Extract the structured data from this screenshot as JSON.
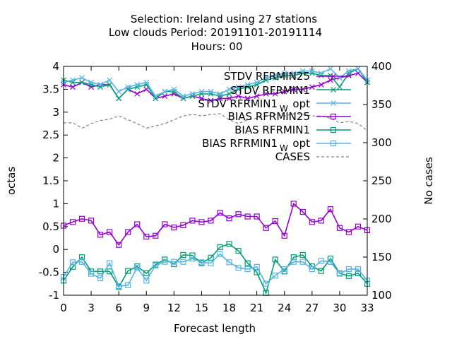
{
  "chart_data": {
    "type": "line",
    "title_lines": [
      "Selection: Ireland using    27 stations",
      "Low clouds   Period: 20191101-20191114",
      "Hours:  00"
    ],
    "xlabel": "Forecast length",
    "ylabel": "octas",
    "y2label": "No cases",
    "xlim": [
      0,
      33
    ],
    "ylim": [
      -1,
      4
    ],
    "y2lim": [
      100,
      400
    ],
    "xticks": [
      0,
      3,
      6,
      9,
      12,
      15,
      18,
      21,
      24,
      27,
      30,
      33
    ],
    "yticks": [
      -1,
      -0.5,
      0,
      0.5,
      1,
      1.5,
      2,
      2.5,
      3,
      3.5,
      4
    ],
    "y2ticks": [
      100,
      150,
      200,
      250,
      300,
      350,
      400
    ],
    "x": [
      0,
      1,
      2,
      3,
      4,
      5,
      6,
      7,
      8,
      9,
      10,
      11,
      12,
      13,
      14,
      15,
      16,
      17,
      18,
      19,
      20,
      21,
      22,
      23,
      24,
      25,
      26,
      27,
      28,
      29,
      30,
      31,
      32,
      33
    ],
    "legend_position": "top-right",
    "series": [
      {
        "name": "STDV RFRMIN25",
        "color": "#9400d3",
        "marker": "cross",
        "axis": "y1",
        "values": [
          3.6,
          3.55,
          3.65,
          3.55,
          3.6,
          3.6,
          3.3,
          3.5,
          3.4,
          3.5,
          3.3,
          3.35,
          3.4,
          3.3,
          3.35,
          3.3,
          3.25,
          3.3,
          3.3,
          3.35,
          3.3,
          3.35,
          3.4,
          3.4,
          3.45,
          3.5,
          3.5,
          3.55,
          3.6,
          3.7,
          3.75,
          3.8,
          3.85,
          3.65
        ]
      },
      {
        "name": "STDV RFRMIN1",
        "color": "#009e73",
        "marker": "cross",
        "axis": "y1",
        "values": [
          3.7,
          3.65,
          3.65,
          3.6,
          3.55,
          3.6,
          3.3,
          3.5,
          3.55,
          3.6,
          3.3,
          3.45,
          3.45,
          3.3,
          3.35,
          3.4,
          3.4,
          3.35,
          3.4,
          3.5,
          3.55,
          3.6,
          3.7,
          3.75,
          3.8,
          3.8,
          3.85,
          3.85,
          3.8,
          3.8,
          3.55,
          3.85,
          3.95,
          3.65
        ]
      },
      {
        "name": "STDV RFRMIN1_W opt",
        "color": "#56b4e9",
        "marker": "cross",
        "axis": "y1",
        "values": [
          3.65,
          3.7,
          3.75,
          3.65,
          3.6,
          3.7,
          3.45,
          3.55,
          3.6,
          3.65,
          3.35,
          3.45,
          3.5,
          3.35,
          3.4,
          3.45,
          3.45,
          3.4,
          3.5,
          3.55,
          3.6,
          3.65,
          3.75,
          3.8,
          3.85,
          3.85,
          3.9,
          3.9,
          3.85,
          3.95,
          3.75,
          3.9,
          3.95,
          3.7
        ]
      },
      {
        "name": "BIAS RFRMIN25",
        "color": "#9400d3",
        "marker": "square",
        "axis": "y1",
        "values": [
          0.52,
          0.6,
          0.67,
          0.63,
          0.32,
          0.38,
          0.1,
          0.38,
          0.55,
          0.28,
          0.3,
          0.55,
          0.48,
          0.53,
          0.63,
          0.6,
          0.63,
          0.8,
          0.68,
          0.77,
          0.72,
          0.72,
          0.47,
          0.62,
          0.3,
          1.0,
          0.82,
          0.6,
          0.63,
          0.88,
          0.47,
          0.38,
          0.5,
          0.42
        ]
      },
      {
        "name": "BIAS RFRMIN1",
        "color": "#009e73",
        "marker": "square",
        "axis": "y1",
        "values": [
          -0.68,
          -0.38,
          -0.17,
          -0.48,
          -0.48,
          -0.48,
          -0.82,
          -0.47,
          -0.37,
          -0.52,
          -0.33,
          -0.22,
          -0.32,
          -0.12,
          -0.13,
          -0.3,
          -0.18,
          0.05,
          0.12,
          -0.03,
          -0.3,
          -0.5,
          -0.95,
          -0.22,
          -0.48,
          -0.17,
          -0.12,
          -0.37,
          -0.47,
          -0.2,
          -0.52,
          -0.58,
          -0.52,
          -0.75
        ]
      },
      {
        "name": "BIAS RFRMIN1_W opt",
        "color": "#56b4e9",
        "marker": "square",
        "axis": "y1",
        "values": [
          -0.6,
          -0.28,
          -0.27,
          -0.53,
          -0.63,
          -0.3,
          -0.8,
          -0.78,
          -0.4,
          -0.68,
          -0.35,
          -0.27,
          -0.27,
          -0.27,
          -0.2,
          -0.28,
          -0.3,
          -0.1,
          -0.28,
          -0.4,
          -0.43,
          -0.38,
          -0.75,
          -0.57,
          -0.43,
          -0.27,
          -0.27,
          -0.43,
          -0.25,
          -0.27,
          -0.53,
          -0.43,
          -0.43,
          -0.68
        ]
      },
      {
        "name": "CASES",
        "color": "#808080",
        "marker": "none",
        "dashed": true,
        "axis": "y2",
        "values": [
          326,
          326,
          319,
          325,
          329,
          331,
          335,
          330,
          325,
          319,
          322,
          325,
          330,
          335,
          337,
          335,
          337,
          338,
          330,
          325,
          330,
          332,
          335,
          337,
          335,
          338,
          337,
          335,
          335,
          332,
          326,
          328,
          325,
          316
        ]
      }
    ],
    "legend": [
      "STDV RFRMIN25",
      "STDV RFRMIN1",
      "STDV RFRMIN1",
      "opt",
      "W",
      "BIAS RFRMIN25",
      "BIAS RFRMIN1",
      "BIAS RFRMIN1",
      "opt",
      "W",
      "CASES"
    ]
  }
}
